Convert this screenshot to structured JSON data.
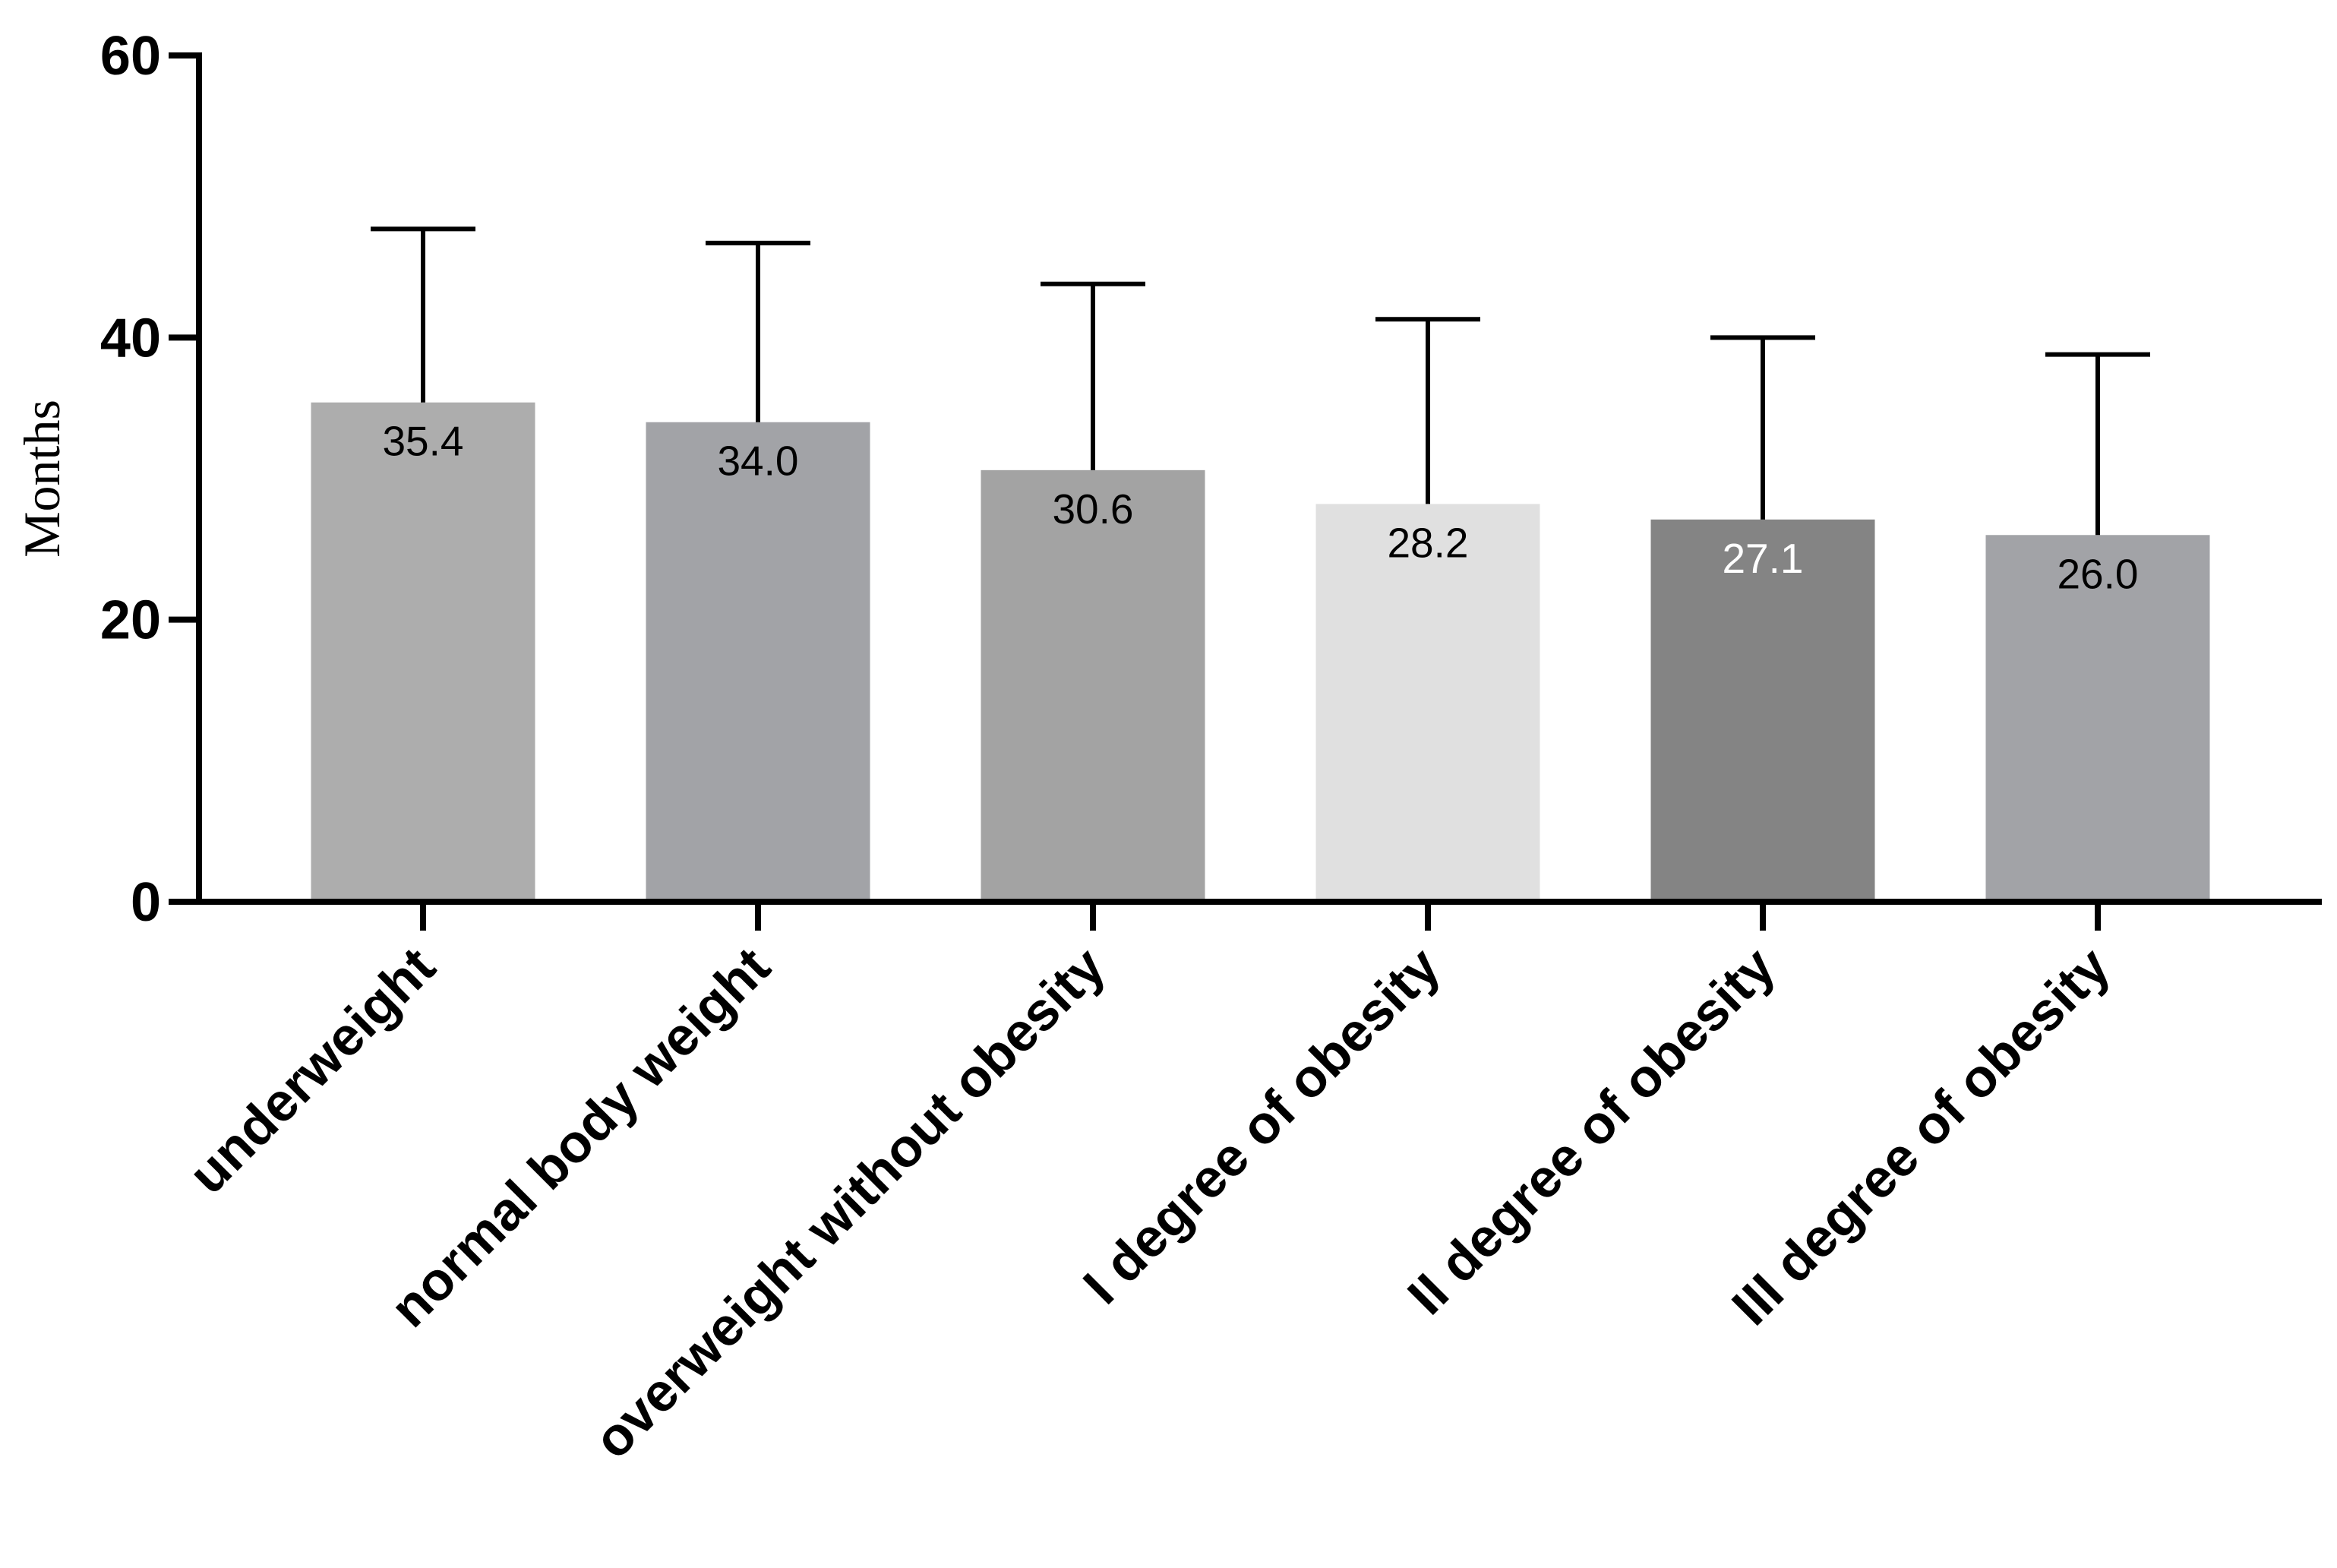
{
  "chart_data": {
    "type": "bar",
    "y_label": "Months",
    "categories": [
      "underweight",
      "normal body weight",
      "overweight without obesity",
      "I degree of obesity",
      "II degree of obesity",
      "III degree of obesity"
    ],
    "values": [
      35.4,
      34.0,
      30.6,
      28.2,
      27.1,
      26.0
    ],
    "value_labels": [
      "35.4",
      "34.0",
      "30.6",
      "28.2",
      "27.1",
      "26.0"
    ],
    "errors": [
      12.3,
      12.7,
      13.2,
      13.1,
      12.9,
      12.8
    ],
    "colors": [
      "#adadad",
      "#a2a3a7",
      "#a3a3a3",
      "#e0e0e0",
      "#848484",
      "#a2a3a7"
    ],
    "value_label_colors": [
      "#000000",
      "#000000",
      "#000000",
      "#000000",
      "#ffffff",
      "#000000"
    ],
    "ylim": [
      0,
      60
    ],
    "yticks": [
      0,
      20,
      40,
      60
    ]
  }
}
